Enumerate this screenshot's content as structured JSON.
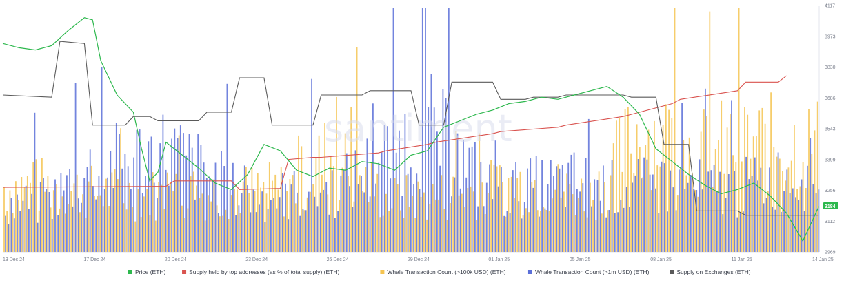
{
  "watermark": "santiment",
  "chart_data": {
    "type": "line",
    "x_ticks": [
      "13 Dec 24",
      "17 Dec 24",
      "20 Dec 24",
      "23 Dec 24",
      "26 Dec 24",
      "29 Dec 24",
      "01 Jan 25",
      "05 Jan 25",
      "08 Jan 25",
      "11 Jan 25",
      "14 Jan 25"
    ],
    "y_ticks": [
      4117,
      3973,
      3830,
      3686,
      3543,
      3399,
      3256,
      3112,
      2969
    ],
    "ylim": [
      2969,
      4117
    ],
    "current_price_label": "3184",
    "colors": {
      "price": "#2db84d",
      "supply_top": "#d9534f",
      "whale_100k": "#f5c451",
      "whale_1m": "#5b6fd8",
      "supply_exchanges": "#5a5a5a"
    },
    "series": [
      {
        "name": "Price (ETH)",
        "color": "#2db84d",
        "x": [
          0,
          2,
          4,
          6,
          8,
          10,
          11,
          12,
          14,
          16,
          17,
          18,
          19,
          20,
          22,
          24,
          26,
          28,
          30,
          32,
          34,
          36,
          38,
          40,
          42,
          44,
          46,
          48,
          50,
          52,
          54,
          56,
          58,
          60,
          62,
          64,
          66,
          68,
          70,
          72,
          74,
          76,
          78,
          80,
          82,
          84,
          86,
          88,
          90,
          92,
          94,
          96,
          98,
          100
        ],
        "values": [
          3940,
          3920,
          3910,
          3930,
          4000,
          4060,
          4050,
          3860,
          3700,
          3620,
          3450,
          3300,
          3340,
          3480,
          3420,
          3360,
          3290,
          3260,
          3330,
          3470,
          3440,
          3350,
          3320,
          3360,
          3350,
          3390,
          3380,
          3350,
          3420,
          3440,
          3550,
          3580,
          3610,
          3630,
          3660,
          3670,
          3690,
          3680,
          3700,
          3720,
          3740,
          3690,
          3610,
          3450,
          3390,
          3330,
          3280,
          3240,
          3260,
          3290,
          3230,
          3150,
          3020,
          3184
        ]
      },
      {
        "name": "Supply held by top addresses (as % of total supply) (ETH)",
        "color": "#d9534f",
        "x": [
          0,
          20,
          21,
          28,
          29,
          34,
          35,
          38,
          39,
          46,
          47,
          52,
          53,
          60,
          61,
          68,
          69,
          76,
          77,
          82,
          83,
          90,
          91,
          95,
          96
        ],
        "values": [
          3270,
          3275,
          3300,
          3300,
          3260,
          3265,
          3400,
          3410,
          3410,
          3430,
          3440,
          3470,
          3480,
          3520,
          3530,
          3550,
          3560,
          3600,
          3610,
          3660,
          3680,
          3720,
          3760,
          3760,
          3790
        ]
      },
      {
        "name": "Whale Transaction Count (>100k USD) (ETH)",
        "color": "#f5c451",
        "x": [
          7,
          10,
          18,
          35,
          40,
          47,
          52,
          65,
          72,
          78,
          82,
          86,
          90,
          95
        ],
        "values": [
          520,
          480,
          460,
          500,
          780,
          420,
          430,
          560,
          440,
          990,
          860,
          790,
          880,
          860
        ]
      },
      {
        "name": "Whale Transaction Count (>1m USD) (ETH)",
        "color": "#5b6fd8",
        "x": [
          5,
          10,
          20,
          30,
          41,
          52,
          60,
          70,
          75,
          80,
          90,
          97
        ],
        "values": [
          380,
          640,
          820,
          420,
          500,
          1000,
          480,
          560,
          500,
          520,
          500,
          620
        ]
      },
      {
        "name": "Supply on Exchanges (ETH)",
        "color": "#5a5a5a",
        "x": [
          0,
          6,
          7,
          10,
          11,
          15,
          16,
          18,
          19,
          24,
          25,
          28,
          29,
          32,
          33,
          38,
          39,
          44,
          45,
          50,
          51,
          54,
          55,
          60,
          61,
          64,
          65,
          68,
          69,
          72,
          73,
          76,
          77,
          80,
          81,
          84,
          85,
          90,
          91,
          95,
          96,
          100
        ],
        "values": [
          3700,
          3690,
          3950,
          3940,
          3560,
          3560,
          3600,
          3600,
          3580,
          3580,
          3620,
          3620,
          3780,
          3780,
          3560,
          3560,
          3700,
          3700,
          3720,
          3720,
          3560,
          3560,
          3760,
          3760,
          3680,
          3680,
          3690,
          3690,
          3700,
          3700,
          3700,
          3700,
          3690,
          3690,
          3470,
          3470,
          3160,
          3160,
          3140,
          3140,
          3140,
          3140
        ]
      }
    ],
    "legend_position": "bottom",
    "grid": false
  },
  "legend": [
    {
      "label": "Price (ETH)",
      "color": "#2db84d"
    },
    {
      "label": "Supply held by top addresses (as % of total supply) (ETH)",
      "color": "#d9534f"
    },
    {
      "label": "Whale Transaction Count (>100k USD) (ETH)",
      "color": "#f5c451"
    },
    {
      "label": "Whale Transaction Count (>1m USD) (ETH)",
      "color": "#5b6fd8"
    },
    {
      "label": "Supply on Exchanges (ETH)",
      "color": "#5a5a5a"
    }
  ]
}
